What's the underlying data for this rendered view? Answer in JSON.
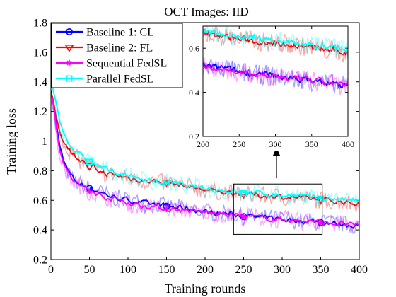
{
  "chart_data": {
    "type": "line",
    "title": "OCT Images: IID",
    "xlabel": "Training rounds",
    "ylabel": "Training loss",
    "xlim": [
      0,
      400
    ],
    "ylim": [
      0.2,
      1.8
    ],
    "xticks": [
      0,
      50,
      100,
      150,
      200,
      250,
      300,
      350,
      400
    ],
    "yticks": [
      0.2,
      0.4,
      0.6,
      0.8,
      1.0,
      1.2,
      1.4,
      1.6,
      1.8
    ],
    "xtick_labels": [
      "0",
      "50",
      "100",
      "150",
      "200",
      "250",
      "300",
      "350",
      "400"
    ],
    "ytick_labels": [
      "0.2",
      "0.4",
      "0.6",
      "0.8",
      "1",
      "1.2",
      "1.4",
      "1.6",
      "1.8"
    ],
    "grid": false,
    "legend_position": "top-left",
    "x": [
      0,
      10,
      20,
      30,
      40,
      50,
      60,
      70,
      80,
      90,
      100,
      110,
      120,
      130,
      140,
      150,
      160,
      170,
      180,
      190,
      200,
      210,
      220,
      230,
      240,
      250,
      260,
      270,
      280,
      290,
      300,
      310,
      320,
      330,
      340,
      350,
      360,
      370,
      380,
      390,
      400
    ],
    "series": [
      {
        "name": "Baseline 1: CL",
        "color": "#0000ff",
        "marker": "circle",
        "values": [
          1.32,
          0.95,
          0.8,
          0.73,
          0.7,
          0.68,
          0.66,
          0.64,
          0.62,
          0.61,
          0.6,
          0.59,
          0.58,
          0.57,
          0.57,
          0.56,
          0.55,
          0.55,
          0.54,
          0.53,
          0.52,
          0.52,
          0.51,
          0.51,
          0.5,
          0.49,
          0.49,
          0.48,
          0.48,
          0.48,
          0.47,
          0.47,
          0.46,
          0.46,
          0.46,
          0.45,
          0.45,
          0.44,
          0.44,
          0.43,
          0.43
        ]
      },
      {
        "name": "Baseline 2: FL",
        "color": "#ff0000",
        "marker": "triangle-down",
        "values": [
          1.3,
          1.05,
          0.96,
          0.9,
          0.86,
          0.83,
          0.8,
          0.78,
          0.77,
          0.76,
          0.75,
          0.74,
          0.73,
          0.73,
          0.72,
          0.72,
          0.71,
          0.7,
          0.69,
          0.68,
          0.67,
          0.66,
          0.66,
          0.65,
          0.65,
          0.64,
          0.64,
          0.63,
          0.63,
          0.63,
          0.62,
          0.62,
          0.62,
          0.61,
          0.61,
          0.6,
          0.6,
          0.59,
          0.59,
          0.58,
          0.58
        ]
      },
      {
        "name": "Sequential FedSL",
        "color": "#ff00ff",
        "marker": "star",
        "values": [
          1.33,
          0.93,
          0.78,
          0.72,
          0.69,
          0.66,
          0.64,
          0.62,
          0.61,
          0.6,
          0.58,
          0.57,
          0.56,
          0.56,
          0.55,
          0.54,
          0.54,
          0.53,
          0.53,
          0.52,
          0.52,
          0.51,
          0.51,
          0.5,
          0.5,
          0.49,
          0.49,
          0.48,
          0.48,
          0.47,
          0.47,
          0.47,
          0.46,
          0.46,
          0.46,
          0.45,
          0.45,
          0.44,
          0.44,
          0.43,
          0.43
        ]
      },
      {
        "name": "Parallel FedSL",
        "color": "#00ffff",
        "marker": "square",
        "values": [
          1.4,
          1.12,
          1.0,
          0.93,
          0.89,
          0.86,
          0.83,
          0.81,
          0.79,
          0.78,
          0.76,
          0.75,
          0.74,
          0.73,
          0.72,
          0.72,
          0.71,
          0.7,
          0.69,
          0.69,
          0.68,
          0.67,
          0.67,
          0.66,
          0.66,
          0.65,
          0.65,
          0.65,
          0.64,
          0.64,
          0.63,
          0.63,
          0.63,
          0.62,
          0.62,
          0.61,
          0.61,
          0.61,
          0.6,
          0.6,
          0.59
        ]
      }
    ],
    "inset": {
      "xlim": [
        200,
        400
      ],
      "ylim": [
        0.2,
        0.7
      ],
      "xticks": [
        200,
        250,
        300,
        350,
        400
      ],
      "yticks": [
        0.2,
        0.4,
        0.6
      ],
      "xtick_labels": [
        "200",
        "250",
        "300",
        "350",
        "400"
      ],
      "ytick_labels": [
        "0.2",
        "0.4",
        "0.6"
      ],
      "zoom_region": {
        "xlim": [
          237,
          352
        ],
        "ylim": [
          0.37,
          0.71
        ]
      }
    }
  }
}
